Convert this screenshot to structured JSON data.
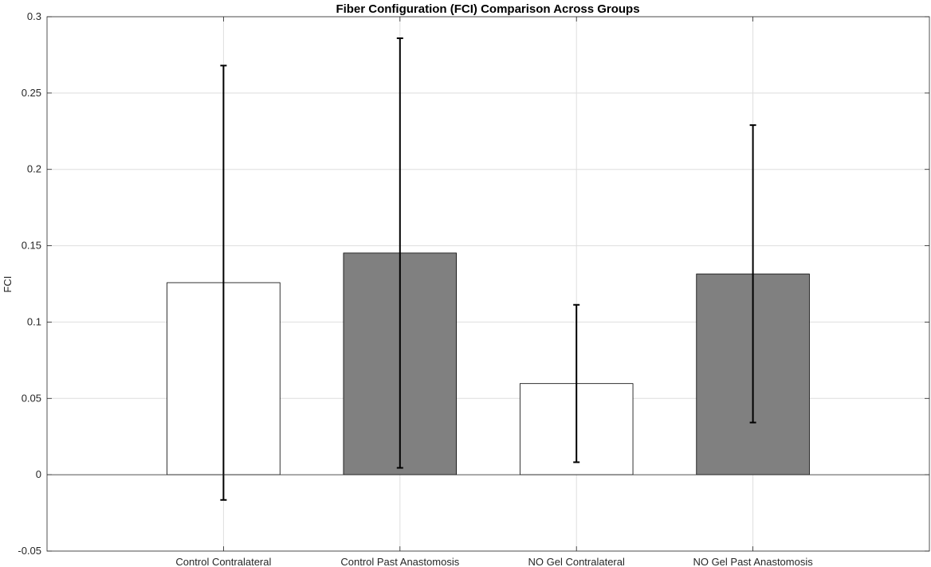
{
  "chart_data": {
    "type": "bar",
    "title": "Fiber Configuration (FCI) Comparison Across Groups",
    "xlabel": "",
    "ylabel": "FCI",
    "categories": [
      "Control Contralateral",
      "Control Past Anastomosis",
      "NO Gel Contralateral",
      "NO Gel Past Anastomosis"
    ],
    "values": [
      0.1258,
      0.1452,
      0.0597,
      0.1315
    ],
    "error_lower": [
      -0.0165,
      0.0045,
      0.0082,
      0.0342
    ],
    "error_upper": [
      0.268,
      0.2859,
      0.1113,
      0.229
    ],
    "bar_colors": [
      "#ffffff",
      "#808080",
      "#ffffff",
      "#808080"
    ],
    "ylim": [
      -0.05,
      0.3
    ],
    "yticks": [
      -0.05,
      0,
      0.05,
      0.1,
      0.15,
      0.2,
      0.25,
      0.3
    ],
    "ytick_labels": [
      "-0.05",
      "0",
      "0.05",
      "0.1",
      "0.15",
      "0.2",
      "0.25",
      "0.3"
    ],
    "grid": true,
    "legend": "none"
  }
}
